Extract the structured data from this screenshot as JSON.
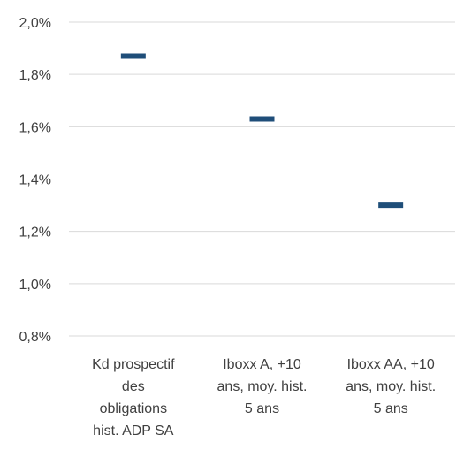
{
  "chart_data": {
    "type": "scatter",
    "marker": "dash",
    "color": "#1f4e79",
    "categories": [
      [
        "Kd prospectif",
        "des",
        "obligations",
        "hist. ADP SA"
      ],
      [
        "Iboxx A, +10",
        "ans, moy. hist.",
        "5 ans"
      ],
      [
        "Iboxx AA, +10",
        "ans, moy. hist.",
        "5 ans"
      ]
    ],
    "values": [
      1.87,
      1.63,
      1.3
    ],
    "ylim": [
      0.8,
      2.0
    ],
    "yticks": [
      2.0,
      1.8,
      1.6,
      1.4,
      1.2,
      1.0,
      0.8
    ],
    "ytick_labels": [
      "2,0%",
      "1,8%",
      "1,6%",
      "1,4%",
      "1,2%",
      "1,0%",
      "0,8%"
    ],
    "grid": true,
    "legend": "none"
  }
}
